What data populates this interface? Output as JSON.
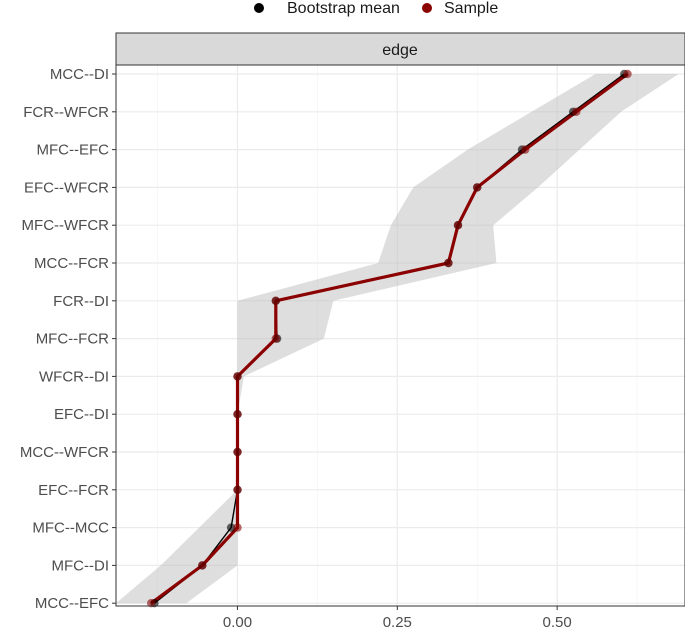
{
  "chart_data": {
    "type": "line",
    "facet_label": "edge",
    "legend": {
      "position": "top",
      "entries": [
        {
          "name": "Bootstrap mean",
          "color": "#000000"
        },
        {
          "name": "Sample",
          "color": "#8b0000"
        }
      ]
    },
    "xlabel": "",
    "ylabel": "",
    "xlim": [
      -0.19,
      0.7
    ],
    "x_ticks": [
      0.0,
      0.25,
      0.5
    ],
    "x_tick_labels": [
      "0.00",
      "0.25",
      "0.50"
    ],
    "categories": [
      "MCC--DI",
      "FCR--WFCR",
      "MFC--EFC",
      "EFC--WFCR",
      "MFC--WFCR",
      "MCC--FCR",
      "FCR--DI",
      "MFC--FCR",
      "WFCR--DI",
      "EFC--DI",
      "MCC--WFCR",
      "EFC--FCR",
      "MFC--MCC",
      "MFC--DI",
      "MCC--EFC"
    ],
    "series": [
      {
        "name": "Sample",
        "color": "#8b0000",
        "values": [
          0.61,
          0.53,
          0.45,
          0.375,
          0.345,
          0.33,
          0.06,
          0.06,
          0.0,
          0.0,
          0.0,
          0.0,
          0.0,
          -0.055,
          -0.135
        ]
      },
      {
        "name": "Bootstrap mean",
        "color": "#000000",
        "values": [
          0.605,
          0.525,
          0.445,
          0.375,
          0.345,
          0.33,
          0.06,
          0.062,
          0.0,
          0.0,
          0.0,
          0.0,
          -0.01,
          -0.055,
          -0.13
        ]
      }
    ],
    "ci_band": {
      "lower": [
        0.56,
        0.46,
        0.36,
        0.275,
        0.24,
        0.22,
        0.0,
        0.0,
        0.0,
        0.0,
        0.0,
        0.0,
        -0.06,
        -0.12,
        -0.19
      ],
      "upper": [
        0.69,
        0.6,
        0.535,
        0.47,
        0.4,
        0.405,
        0.15,
        0.135,
        0.01,
        0.0,
        0.0,
        0.0,
        0.0,
        0.0,
        -0.08
      ]
    },
    "grid": true
  }
}
